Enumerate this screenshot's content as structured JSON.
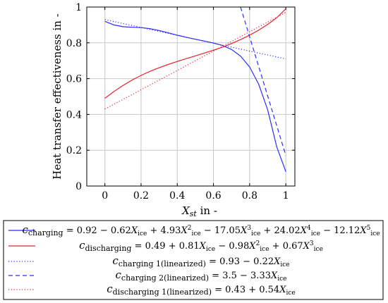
{
  "chart_data": {
    "type": "line",
    "xlabel_main": "X",
    "xlabel_sub": "st",
    "xlabel_rest": " in -",
    "ylabel": "Heat transfer effectiveness in -",
    "xlim": [
      -0.1,
      1.05
    ],
    "ylim": [
      0,
      1
    ],
    "grid": true,
    "legend_position": "below",
    "x_ticks": [
      "0",
      "0.2",
      "0.4",
      "0.6",
      "0.8",
      "1"
    ],
    "y_ticks": [
      "0",
      "0.2",
      "0.4",
      "0.6",
      "0.8",
      "1"
    ],
    "series": [
      {
        "color": "#2b2bff",
        "style": "solid",
        "x": [
          0,
          0.05,
          0.1,
          0.15,
          0.2,
          0.25,
          0.3,
          0.35,
          0.4,
          0.45,
          0.5,
          0.55,
          0.6,
          0.65,
          0.7,
          0.75,
          0.8,
          0.85,
          0.9,
          0.95,
          1
        ],
        "y": [
          0.92,
          0.9,
          0.89,
          0.887,
          0.885,
          0.879,
          0.869,
          0.856,
          0.843,
          0.831,
          0.82,
          0.81,
          0.799,
          0.785,
          0.763,
          0.726,
          0.665,
          0.569,
          0.425,
          0.219,
          0.08
        ],
        "legend": {
          "symbol": "c",
          "sub": "charging",
          "formula": [
            {
              "t": " = 0.92 − 0.62"
            },
            {
              "t": "X"
            },
            {
              "t": "ice",
              "sub": true
            },
            {
              "t": " + 4.93"
            },
            {
              "t": "X"
            },
            {
              "t": "2",
              "sup": true
            },
            {
              "t": "ice",
              "sub": true
            },
            {
              "t": " − 17.05"
            },
            {
              "t": "X"
            },
            {
              "t": "3",
              "sup": true
            },
            {
              "t": "ice",
              "sub": true
            },
            {
              "t": " + 24.02"
            },
            {
              "t": "X"
            },
            {
              "t": "4",
              "sup": true
            },
            {
              "t": "ice",
              "sub": true
            },
            {
              "t": " − 12.12"
            },
            {
              "t": "X"
            },
            {
              "t": "5",
              "sup": true
            },
            {
              "t": "ice",
              "sub": true
            }
          ]
        }
      },
      {
        "color": "#e8232a",
        "style": "solid",
        "x": [
          0,
          0.05,
          0.1,
          0.15,
          0.2,
          0.25,
          0.3,
          0.35,
          0.4,
          0.45,
          0.5,
          0.55,
          0.6,
          0.65,
          0.7,
          0.75,
          0.8,
          0.85,
          0.9,
          0.95,
          1
        ],
        "y": [
          0.49,
          0.528,
          0.562,
          0.592,
          0.618,
          0.641,
          0.661,
          0.679,
          0.696,
          0.712,
          0.727,
          0.743,
          0.759,
          0.776,
          0.796,
          0.818,
          0.843,
          0.871,
          0.903,
          0.94,
          0.99
        ],
        "legend": {
          "symbol": "c",
          "sub": "discharging",
          "formula": [
            {
              "t": " = 0.49 + 0.81"
            },
            {
              "t": "X"
            },
            {
              "t": "ice",
              "sub": true
            },
            {
              "t": " − 0.98"
            },
            {
              "t": "X"
            },
            {
              "t": "2",
              "sup": true
            },
            {
              "t": "ice",
              "sub": true
            },
            {
              "t": " + 0.67"
            },
            {
              "t": "X"
            },
            {
              "t": "3",
              "sup": true
            },
            {
              "t": "ice",
              "sub": true
            }
          ]
        }
      },
      {
        "color": "#2b2bff",
        "style": "dotted",
        "x": [
          0,
          1
        ],
        "y": [
          0.93,
          0.71
        ],
        "legend": {
          "symbol": "c",
          "sub": "charging 1(linearized)",
          "formula": [
            {
              "t": " = 0.93 − 0.22"
            },
            {
              "t": "X"
            },
            {
              "t": "ice",
              "sub": true
            }
          ]
        }
      },
      {
        "color": "#2b2bff",
        "style": "dashed",
        "x": [
          0.75,
          1
        ],
        "y": [
          1.0,
          0.17
        ],
        "legend": {
          "symbol": "c",
          "sub": "charging 2(linearized)",
          "formula": [
            {
              "t": " = 3.5 − 3.33"
            },
            {
              "t": "X"
            },
            {
              "t": "ice",
              "sub": true
            }
          ]
        }
      },
      {
        "color": "#e8232a",
        "style": "dotted",
        "x": [
          0,
          1
        ],
        "y": [
          0.43,
          0.97
        ],
        "legend": {
          "symbol": "c",
          "sub": "discharging 1(linearized)",
          "formula": [
            {
              "t": " = 0.43 + 0.54"
            },
            {
              "t": "X"
            },
            {
              "t": "ice",
              "sub": true
            }
          ]
        }
      }
    ]
  }
}
